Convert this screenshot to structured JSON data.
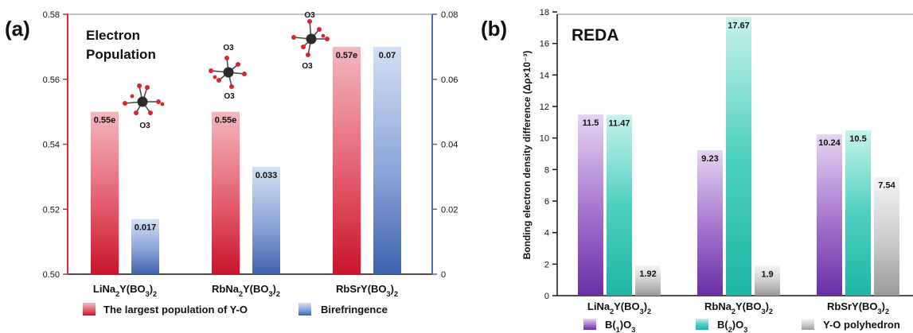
{
  "chart_data": [
    {
      "panel_label": "(a)",
      "type": "bar",
      "title": "Electron\nPopulation",
      "categories": [
        "LiNa2Y(BO3)2",
        "RbNa2Y(BO3)2",
        "RbSrY(BO3)2"
      ],
      "ylim_left": [
        0.5,
        0.58
      ],
      "ylim_right": [
        0,
        0.08
      ],
      "yticks_left": [
        "0.50",
        "0.52",
        "0.54",
        "0.56",
        "0.58"
      ],
      "yticks_right": [
        "0",
        "0.02",
        "0.04",
        "0.06",
        "0.08"
      ],
      "series": [
        {
          "name": "The largest population of Y-O",
          "axis": "left",
          "values": [
            0.55,
            0.55,
            0.57
          ],
          "labels": [
            "0.55e",
            "0.55e",
            "0.57e"
          ],
          "color": "#d9283c"
        },
        {
          "name": "Birefringence",
          "axis": "right",
          "values": [
            0.017,
            0.033,
            0.07
          ],
          "labels": [
            "0.017",
            "0.033",
            "0.07"
          ],
          "color": "#4a6fb5"
        }
      ],
      "annotations": [
        "O3",
        "O3",
        "O3",
        "O3",
        "O3"
      ],
      "grid": false,
      "legend_position": "bottom"
    },
    {
      "panel_label": "(b)",
      "type": "bar",
      "title": "REDA",
      "categories": [
        "LiNa2Y(BO3)2",
        "RbNa2Y(BO3)2",
        "RbSrY(BO3)2"
      ],
      "ylabel": "Bonding electron density difference (Δρ×10⁻³)",
      "ylim": [
        0,
        18
      ],
      "yticks": [
        "0",
        "2",
        "4",
        "6",
        "8",
        "10",
        "12",
        "14",
        "16",
        "18"
      ],
      "series": [
        {
          "name": "B(1)O3",
          "values": [
            11.5,
            9.23,
            10.24
          ],
          "labels": [
            "11.5",
            "9.23",
            "10.24"
          ],
          "color": "#7b3fb0"
        },
        {
          "name": "B(2)O3",
          "values": [
            11.47,
            17.67,
            10.5
          ],
          "labels": [
            "11.47",
            "17.67",
            "10.5"
          ],
          "color": "#2fc0b0"
        },
        {
          "name": "Y-O polyhedron",
          "values": [
            1.92,
            1.9,
            7.54
          ],
          "labels": [
            "1.92",
            "1.9",
            "7.54"
          ],
          "color": "#a6a6a6"
        }
      ],
      "grid": false,
      "legend_position": "bottom"
    }
  ]
}
